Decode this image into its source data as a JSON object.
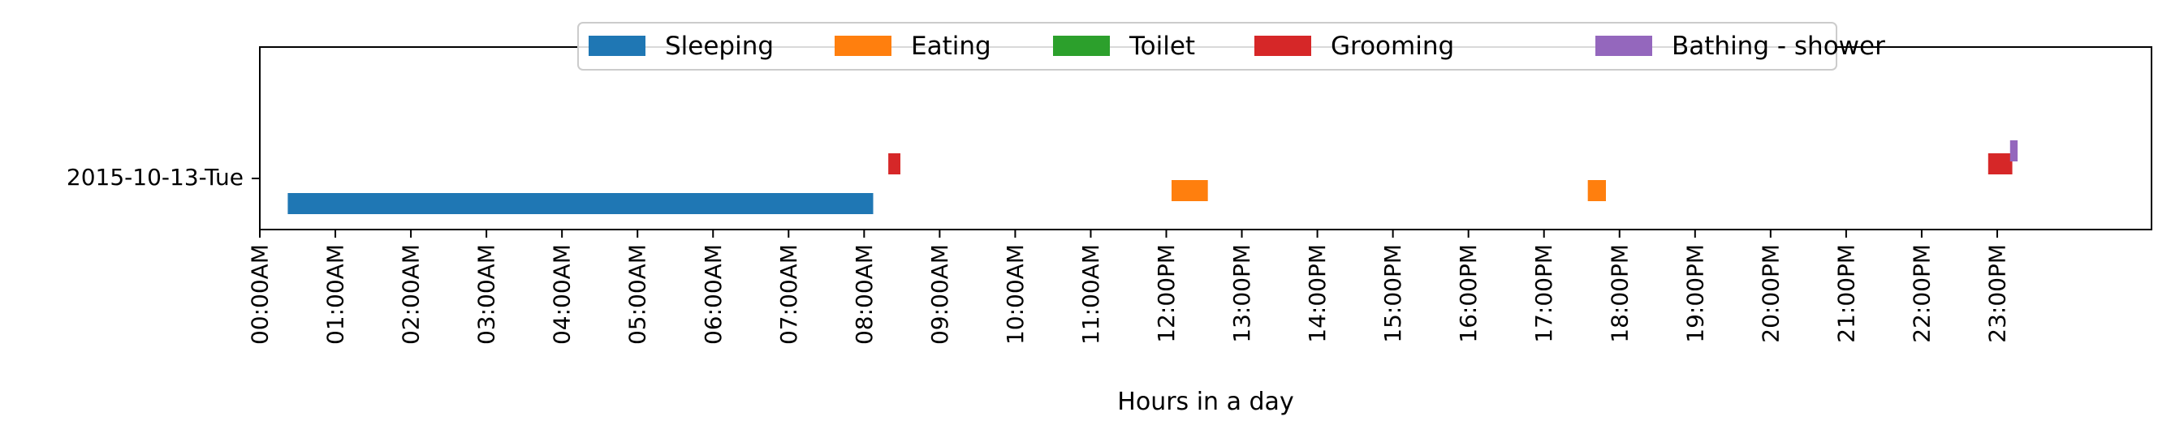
{
  "chart_data": {
    "type": "timeline",
    "title": "",
    "xlabel": "Hours in a day",
    "ylabel": "",
    "xlim": [
      0,
      24
    ],
    "y_categories": [
      "2015-10-13-Tue"
    ],
    "x_ticks": [
      "00:00AM",
      "01:00AM",
      "02:00AM",
      "03:00AM",
      "04:00AM",
      "05:00AM",
      "06:00AM",
      "07:00AM",
      "08:00AM",
      "09:00AM",
      "10:00AM",
      "11:00AM",
      "12:00PM",
      "13:00PM",
      "14:00PM",
      "15:00PM",
      "16:00PM",
      "17:00PM",
      "18:00PM",
      "19:00PM",
      "20:00PM",
      "21:00PM",
      "22:00PM",
      "23:00PM"
    ],
    "legend_position": "top-center",
    "grid": false,
    "series": [
      {
        "name": "Sleeping",
        "color": "#1f77b4",
        "segments": [
          {
            "start": 0.37,
            "end": 8.12
          }
        ]
      },
      {
        "name": "Eating",
        "color": "#ff7f0e",
        "segments": [
          {
            "start": 12.07,
            "end": 12.55
          },
          {
            "start": 17.58,
            "end": 17.82
          }
        ]
      },
      {
        "name": "Toilet",
        "color": "#2ca02c",
        "segments": []
      },
      {
        "name": "Grooming",
        "color": "#d62728",
        "segments": [
          {
            "start": 8.32,
            "end": 8.48
          },
          {
            "start": 22.88,
            "end": 23.2
          }
        ]
      },
      {
        "name": "Bathing - shower",
        "color": "#9467bd",
        "segments": [
          {
            "start": 23.17,
            "end": 23.27
          }
        ]
      }
    ]
  }
}
